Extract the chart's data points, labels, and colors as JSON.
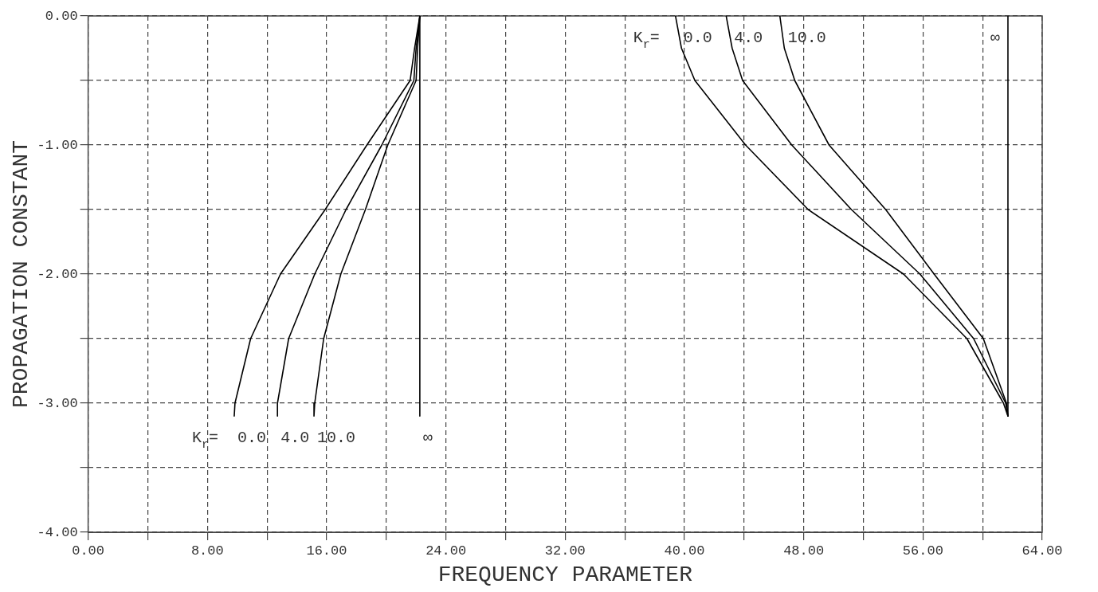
{
  "chart_data": {
    "type": "line",
    "xlabel": "FREQUENCY PARAMETER",
    "ylabel": "PROPAGATION CONSTANT",
    "xlim": [
      0,
      64
    ],
    "ylim": [
      -4,
      0
    ],
    "xticks": [
      {
        "value": 0,
        "label": "0.00"
      },
      {
        "value": 4,
        "label": null
      },
      {
        "value": 8,
        "label": "8.00"
      },
      {
        "value": 12,
        "label": null
      },
      {
        "value": 16,
        "label": "16.00"
      },
      {
        "value": 20,
        "label": null
      },
      {
        "value": 24,
        "label": "24.00"
      },
      {
        "value": 28,
        "label": null
      },
      {
        "value": 32,
        "label": "32.00"
      },
      {
        "value": 36,
        "label": null
      },
      {
        "value": 40,
        "label": "40.00"
      },
      {
        "value": 44,
        "label": null
      },
      {
        "value": 48,
        "label": "48.00"
      },
      {
        "value": 52,
        "label": null
      },
      {
        "value": 56,
        "label": "56.00"
      },
      {
        "value": 60,
        "label": null
      },
      {
        "value": 64,
        "label": "64.00"
      }
    ],
    "yticks": [
      {
        "value": 0,
        "label": "0.00"
      },
      {
        "value": -0.5,
        "label": null
      },
      {
        "value": -1,
        "label": "-1.00"
      },
      {
        "value": -1.5,
        "label": null
      },
      {
        "value": -2,
        "label": "-2.00"
      },
      {
        "value": -2.5,
        "label": null
      },
      {
        "value": -3,
        "label": "-3.00"
      },
      {
        "value": -3.5,
        "label": null
      },
      {
        "value": -4,
        "label": "-4.00"
      }
    ],
    "grid": true,
    "legend": false,
    "marker": "none",
    "line_style": "solid",
    "series": [
      {
        "name": "0.0",
        "color": "#000000",
        "x": [
          22.25,
          21.9,
          21.6,
          18.7,
          15.9,
          12.9,
          10.9,
          9.85,
          9.8
        ],
        "values": [
          0,
          -0.25,
          -0.5,
          -1,
          -1.5,
          -2,
          -2.5,
          -3,
          -3.1
        ]
      },
      {
        "name": "4.0",
        "color": "#000000",
        "x": [
          22.25,
          22.0,
          21.85,
          19.7,
          17.3,
          15.2,
          13.45,
          12.7,
          12.7
        ],
        "values": [
          0,
          -0.25,
          -0.5,
          -1,
          -1.5,
          -2,
          -2.5,
          -3,
          -3.1
        ]
      },
      {
        "name": "10.0",
        "color": "#000000",
        "x": [
          22.25,
          22.1,
          22.0,
          20.1,
          18.6,
          16.95,
          15.8,
          15.2,
          15.15
        ],
        "values": [
          0,
          -0.25,
          -0.5,
          -1,
          -1.5,
          -2,
          -2.5,
          -3,
          -3.1
        ]
      },
      {
        "name": "∞",
        "color": "#000000",
        "x": [
          22.25,
          22.25
        ],
        "values": [
          0,
          -3.1
        ]
      },
      {
        "name": "0.0",
        "color": "#000000",
        "x": [
          39.4,
          39.8,
          40.7,
          44.1,
          48.3,
          54.7,
          58.95,
          61.4,
          61.7
        ],
        "values": [
          0,
          -0.25,
          -0.5,
          -1,
          -1.5,
          -2,
          -2.5,
          -3,
          -3.1
        ]
      },
      {
        "name": "4.0",
        "color": "#000000",
        "x": [
          42.8,
          43.2,
          43.9,
          47.2,
          51.2,
          55.8,
          59.4,
          61.55,
          61.7
        ],
        "values": [
          0,
          -0.25,
          -0.5,
          -1,
          -1.5,
          -2,
          -2.5,
          -3,
          -3.1
        ]
      },
      {
        "name": "10.0",
        "color": "#000000",
        "x": [
          46.4,
          46.7,
          47.4,
          49.7,
          53.5,
          56.75,
          60.05,
          61.6,
          61.7
        ],
        "values": [
          0,
          -0.25,
          -0.5,
          -1,
          -1.5,
          -2,
          -2.5,
          -3,
          -3.1
        ]
      },
      {
        "name": "∞",
        "color": "#000000",
        "x": [
          61.7,
          61.7
        ],
        "values": [
          0,
          -3.1
        ]
      }
    ],
    "annotations": [
      "K$_{r}$=",
      "K$_{r}$="
    ]
  }
}
